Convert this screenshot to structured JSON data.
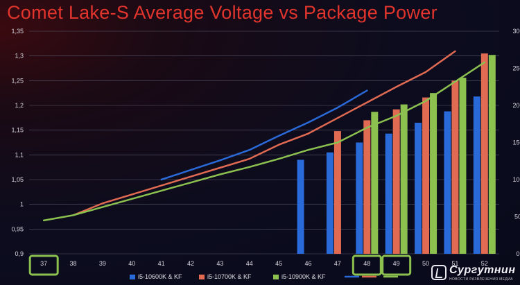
{
  "title": "Comet Lake-S Average Voltage vs Package Power",
  "watermark": {
    "name": "Сургутнин",
    "tagline": "НОВОСТИ РАЗВЛЕЧЕНИЯ МЕДИА"
  },
  "colors": {
    "i5": "#2a6ad8",
    "i7": "#e06a52",
    "i9": "#8cc150",
    "title": "#e0342c",
    "highlight": "#8cc150"
  },
  "chart_data": {
    "type": "bar",
    "title": "Comet Lake-S Average Voltage vs Package Power",
    "categories": [
      "37",
      "38",
      "39",
      "40",
      "41",
      "42",
      "43",
      "44",
      "45",
      "46",
      "47",
      "48",
      "49",
      "50",
      "51",
      "52"
    ],
    "highlighted_categories": [
      "37",
      "48",
      "49"
    ],
    "y_left": {
      "min": 0.9,
      "max": 1.35,
      "ticks": [
        "0,9",
        "0,95",
        "1",
        "1,05",
        "1,1",
        "1,15",
        "1,2",
        "1,25",
        "1,3",
        "1,35"
      ]
    },
    "y_right": {
      "min": 0,
      "max": 300,
      "ticks": [
        "0",
        "50",
        "100",
        "150",
        "200",
        "250",
        "300"
      ]
    },
    "grid": true,
    "legend_position": "bottom",
    "series": [
      {
        "name": "i5-10600K & KF",
        "type": "bar",
        "axis": "left",
        "color": "#2a6ad8",
        "values": [
          null,
          null,
          null,
          null,
          null,
          null,
          null,
          null,
          null,
          1.09,
          1.105,
          1.125,
          1.143,
          1.165,
          1.188,
          1.218
        ]
      },
      {
        "name": "i5-10700K & KF",
        "type": "bar",
        "axis": "left",
        "color": "#e06a52",
        "values": [
          null,
          null,
          null,
          null,
          null,
          null,
          null,
          null,
          null,
          null,
          1.148,
          1.17,
          1.192,
          1.216,
          1.25,
          1.305
        ]
      },
      {
        "name": "i5-10900K & KF",
        "type": "bar",
        "axis": "left",
        "color": "#8cc150",
        "values": [
          null,
          null,
          null,
          null,
          null,
          null,
          null,
          null,
          null,
          null,
          null,
          1.187,
          1.202,
          1.225,
          1.256,
          1.302
        ]
      },
      {
        "name": "",
        "type": "line",
        "axis": "right",
        "color": "#2a6ad8",
        "values": [
          null,
          null,
          null,
          null,
          100,
          113,
          126,
          140,
          159,
          177,
          197,
          220,
          null,
          null,
          null,
          null
        ]
      },
      {
        "name": "",
        "type": "line",
        "axis": "right",
        "color": "#e06a52",
        "values": [
          null,
          52,
          68,
          80,
          92,
          104,
          116,
          128,
          147,
          162,
          183,
          204,
          225,
          245,
          273,
          null
        ]
      },
      {
        "name": "",
        "type": "line",
        "axis": "right",
        "color": "#8cc150",
        "values": [
          45,
          52,
          63,
          74,
          85,
          96,
          107,
          117,
          128,
          140,
          150,
          170,
          186,
          206,
          232,
          258
        ]
      }
    ],
    "legend": [
      {
        "label": "i5-10600K & KF",
        "color": "#2a6ad8",
        "kind": "bar"
      },
      {
        "label": "i5-10700K & KF",
        "color": "#e06a52",
        "kind": "bar"
      },
      {
        "label": "i5-10900K & KF",
        "color": "#8cc150",
        "kind": "bar"
      },
      {
        "label": "",
        "color": "#2a6ad8",
        "kind": "line"
      },
      {
        "label": "",
        "color": "#e06a52",
        "kind": "line"
      },
      {
        "label": "",
        "color": "#8cc150",
        "kind": "line"
      }
    ]
  }
}
